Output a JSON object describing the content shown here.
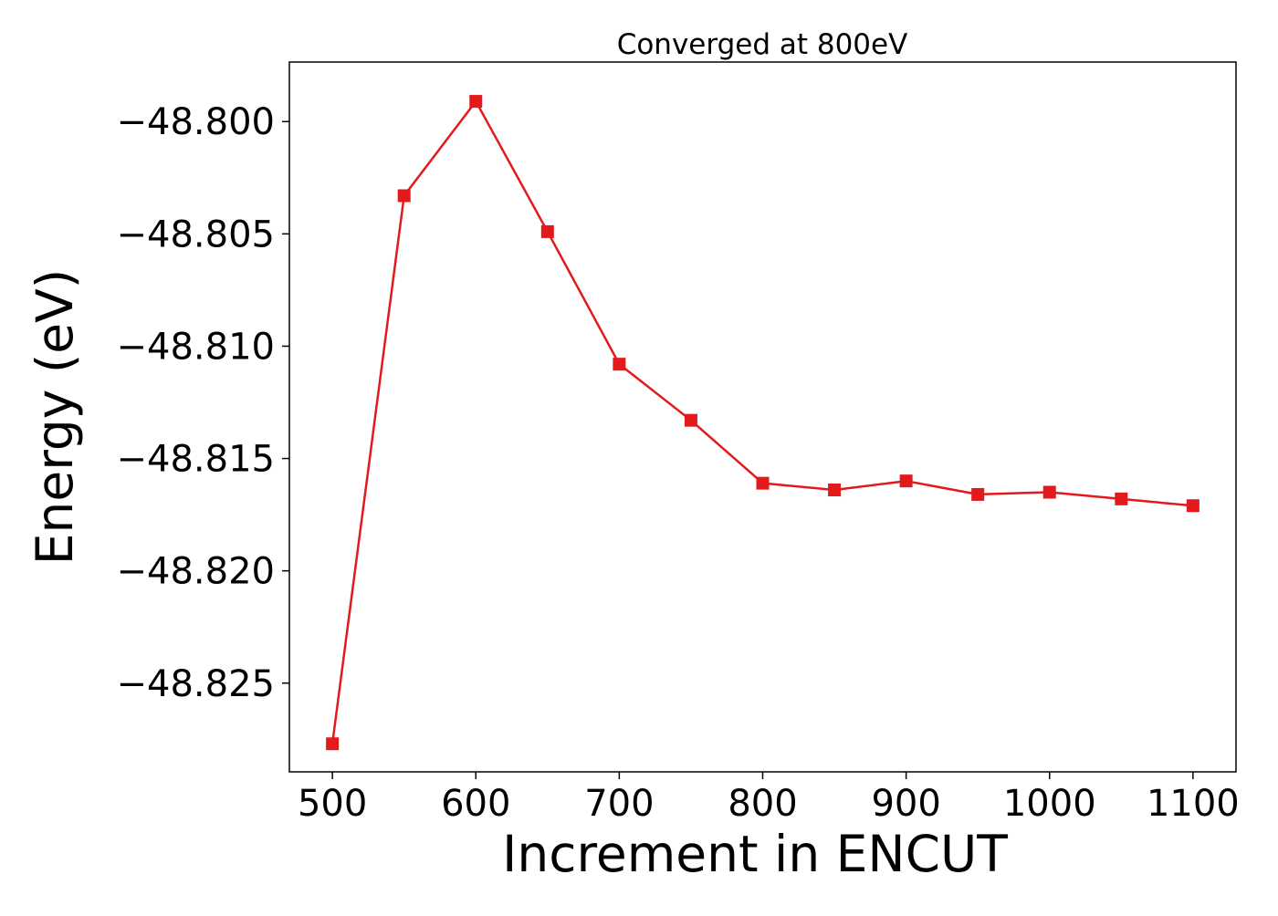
{
  "chart_data": {
    "type": "line",
    "title": "Converged at 800eV",
    "xlabel": "Increment in ENCUT",
    "ylabel": "Energy (eV)",
    "xlim": [
      470,
      1130
    ],
    "ylim": [
      -48.82895,
      -48.79735
    ],
    "x_ticks": [
      500,
      600,
      700,
      800,
      900,
      1000,
      1100
    ],
    "x_tick_labels": [
      "500",
      "600",
      "700",
      "800",
      "900",
      "1000",
      "1100"
    ],
    "y_ticks": [
      -48.8,
      -48.805,
      -48.81,
      -48.815,
      -48.82,
      -48.825
    ],
    "y_tick_labels": [
      "−48.800",
      "−48.805",
      "−48.810",
      "−48.815",
      "−48.820",
      "−48.825"
    ],
    "grid": false,
    "legend": "none",
    "series": [
      {
        "color": "#e31a1c",
        "marker": "square",
        "x": [
          500,
          550,
          600,
          650,
          700,
          750,
          800,
          850,
          900,
          950,
          1000,
          1050,
          1100
        ],
        "y": [
          -48.8277,
          -48.8033,
          -48.7991,
          -48.8049,
          -48.8108,
          -48.8133,
          -48.8161,
          -48.8164,
          -48.816,
          -48.8166,
          -48.8165,
          -48.8168,
          -48.8171
        ]
      }
    ]
  }
}
